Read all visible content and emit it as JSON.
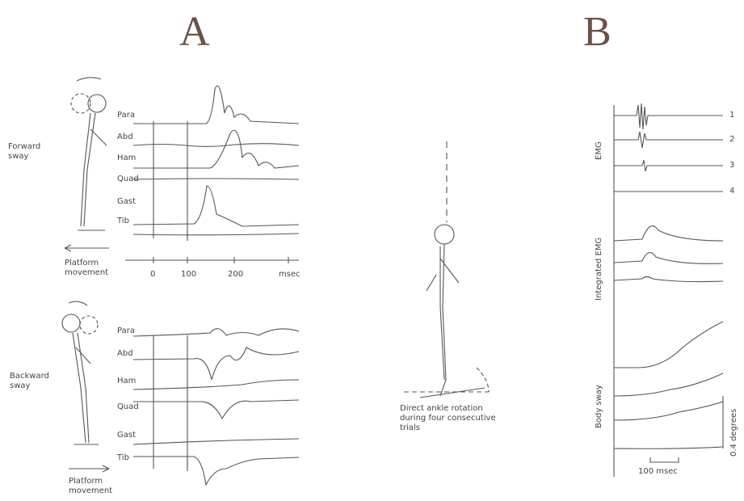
{
  "panel_a": {
    "label": "A",
    "forward": {
      "label": "Forward sway",
      "muscles": [
        "Para",
        "Abd",
        "Ham",
        "Quad",
        "Gast",
        "Tib"
      ],
      "platform": "Platform movement",
      "time_axis": {
        "ticks": [
          0,
          100,
          200
        ],
        "unit": "msec"
      }
    },
    "backward": {
      "label": "Backward sway",
      "muscles": [
        "Para",
        "Abd",
        "Ham",
        "Quad",
        "Gast",
        "Tib"
      ],
      "platform": "Platform movement"
    }
  },
  "middle": {
    "caption": "Direct ankle rotation during four consecutive trials"
  },
  "panel_b": {
    "label": "B",
    "emg_label": "EMG",
    "channels": [
      "1",
      "2",
      "3",
      "4"
    ],
    "integrated_label": "Integrated EMG",
    "sway_label": "Body sway",
    "scale_label": "0.4 degrees",
    "time_label": "100 msec"
  }
}
